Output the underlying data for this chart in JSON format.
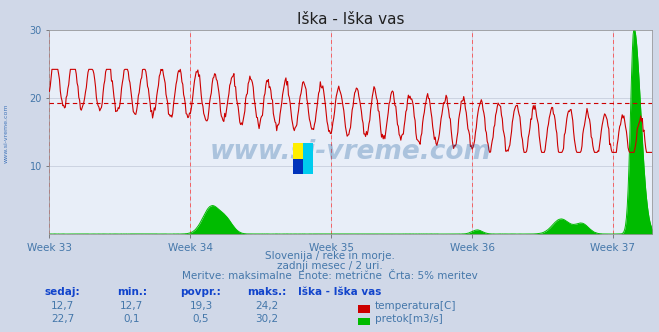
{
  "title": "Iška - Iška vas",
  "bg_color": "#d0d8e8",
  "plot_bg_color": "#e8eef8",
  "grid_color": "#c0c8d8",
  "weeks": [
    "Week 33",
    "Week 34",
    "Week 35",
    "Week 36",
    "Week 37"
  ],
  "week_positions": [
    0,
    168,
    336,
    504,
    672
  ],
  "total_points": 720,
  "temp_avg": 19.3,
  "temp_color": "#cc0000",
  "flow_color": "#00bb00",
  "avg_line_color": "#cc0000",
  "vline_color": "#ff4444",
  "ylim": [
    0,
    30
  ],
  "subtitle1": "Slovenija / reke in morje.",
  "subtitle2": "zadnji mesec / 2 uri.",
  "subtitle3": "Meritve: maksimalne  Enote: metrične  Črta: 5% meritev",
  "table_headers": [
    "sedaj:",
    "min.:",
    "povpr.:",
    "maks.:",
    "Iška - Iška vas"
  ],
  "table_row1": [
    "12,7",
    "12,7",
    "19,3",
    "24,2"
  ],
  "table_row2": [
    "22,7",
    "0,1",
    "0,5",
    "30,2"
  ],
  "label_temp": "temperatura[C]",
  "label_flow": "pretok[m3/s]",
  "watermark": "www.si-vreme.com",
  "watermark_color": "#2060a0",
  "left_label": "www.si-vreme.com",
  "left_label_color": "#4477bb",
  "text_color": "#4477aa",
  "header_color": "#1144cc"
}
